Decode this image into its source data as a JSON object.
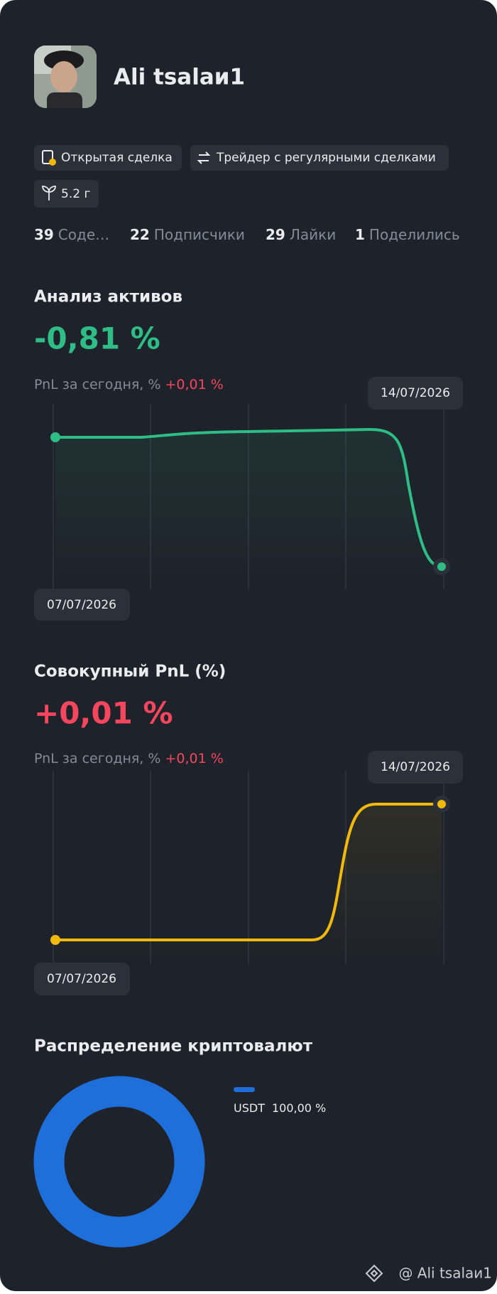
{
  "profile": {
    "name": "Ali tsalaи1"
  },
  "tags": [
    "Открытая сделка",
    "Трейдер с регулярными сделками",
    "5.2 г"
  ],
  "stats": [
    {
      "count": "39",
      "label": "Соде…"
    },
    {
      "count": "22",
      "label": "Подписчики"
    },
    {
      "count": "29",
      "label": "Лайки"
    },
    {
      "count": "1",
      "label": "Поделились"
    }
  ],
  "asset_analysis": {
    "title": "Анализ активов",
    "value": "-0,81 %",
    "subtitle": "PnL за сегодня, %",
    "today": "+0,01 %",
    "start_date": "07/07/2026",
    "end_date": "14/07/2026"
  },
  "cumulative_pnl": {
    "title": "Совокупный PnL (%)",
    "value": "+0,01 %",
    "subtitle": "PnL за сегодня, %",
    "today": "+0,01 %",
    "start_date": "07/07/2026",
    "end_date": "14/07/2026"
  },
  "distribution": {
    "title": "Распределение криптовалют",
    "legend": [
      {
        "asset": "USDT",
        "share": "100,00 %"
      }
    ]
  },
  "footer": {
    "handle": "@ Ali tsalaи1"
  }
}
